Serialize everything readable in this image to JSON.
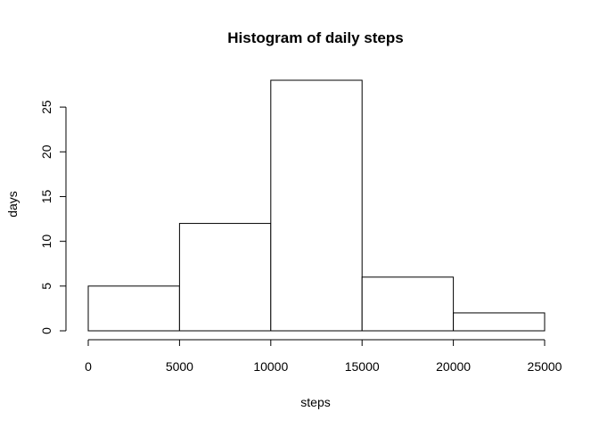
{
  "chart_data": {
    "type": "bar",
    "title": "Histogram of daily steps",
    "xlabel": "steps",
    "ylabel": "days",
    "bins": [
      {
        "from": 0,
        "to": 5000,
        "value": 5
      },
      {
        "from": 5000,
        "to": 10000,
        "value": 12
      },
      {
        "from": 10000,
        "to": 15000,
        "value": 28
      },
      {
        "from": 15000,
        "to": 20000,
        "value": 6
      },
      {
        "from": 20000,
        "to": 25000,
        "value": 2
      }
    ],
    "xticks": [
      "0",
      "5000",
      "10000",
      "15000",
      "20000",
      "25000"
    ],
    "yticks": [
      "0",
      "5",
      "10",
      "15",
      "20",
      "25"
    ],
    "xlim": [
      0,
      25000
    ],
    "ylim": [
      0,
      28
    ],
    "grid": false,
    "legend": "none",
    "bar_fill": "#ffffff",
    "bar_stroke": "#000000"
  }
}
